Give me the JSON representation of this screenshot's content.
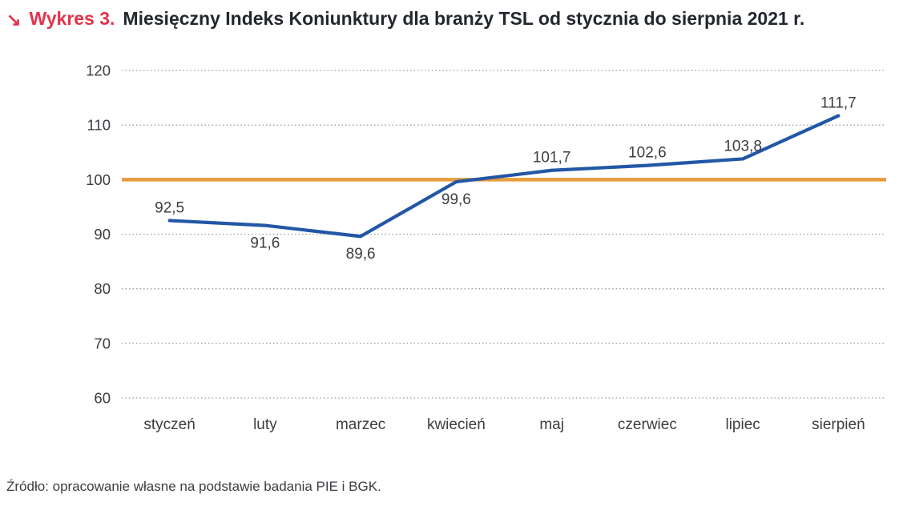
{
  "figure": {
    "marker": "↘",
    "number_label": "Wykres 3.",
    "title": "Miesięczny Indeks Koniunktury dla branży TSL od stycznia do sierpnia 2021 r."
  },
  "source_note": "Źródło: opracowanie własne na podstawie badania PIE i BGK.",
  "colors": {
    "accent_red": "#e5324b",
    "line_blue": "#2257a5",
    "reference_orange": "#e89c3a",
    "grid": "#9c9c9c",
    "text_dark": "#23272e",
    "text_muted": "#3a3e42"
  },
  "chart_data": {
    "type": "line",
    "title": "Miesięczny Indeks Koniunktury dla branży TSL od stycznia do sierpnia 2021 r.",
    "categories": [
      "styczeń",
      "luty",
      "marzec",
      "kwiecień",
      "maj",
      "czerwiec",
      "lipiec",
      "sierpień"
    ],
    "values": [
      92.5,
      91.6,
      89.6,
      99.6,
      101.7,
      102.6,
      103.8,
      111.7
    ],
    "value_labels": [
      "92,5",
      "91,6",
      "89,6",
      "99,6",
      "101,7",
      "102,6",
      "103,8",
      "111,7"
    ],
    "label_positions": [
      "above",
      "below",
      "below",
      "below",
      "above",
      "above",
      "above",
      "above"
    ],
    "series_name": "Indeks Koniunktury",
    "xlabel": "",
    "ylabel": "",
    "ylim": [
      60,
      120
    ],
    "yticks": [
      60,
      70,
      80,
      90,
      100,
      110,
      120
    ],
    "reference_line": 100,
    "grid": "dotted-horizontal",
    "legend": "none"
  }
}
